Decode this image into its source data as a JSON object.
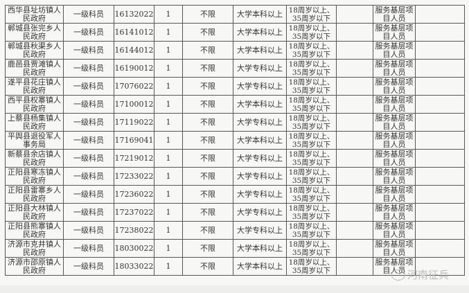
{
  "table": {
    "rows": [
      [
        "西华县址坊镇人民政府",
        "一级科员",
        "16132022",
        "1",
        "不限",
        "大学本科以上",
        "18周岁以上、35周岁以下",
        "",
        "服务基层项目人员",
        ""
      ],
      [
        "郸城县张完乡人民政府",
        "一级科员",
        "16141012",
        "1",
        "不限",
        "大学本科以上",
        "18周岁以上、35周岁以下",
        "",
        "服务基层项目人员",
        ""
      ],
      [
        "郸城县秋渠乡人民政府",
        "一级科员",
        "16144012",
        "1",
        "不限",
        "大学本科以上",
        "18周岁以上、35周岁以下",
        "",
        "服务基层项目人员",
        ""
      ],
      [
        "鹿邑县贾滩镇人民政府",
        "一级科员",
        "16190012",
        "1",
        "不限",
        "大学专科以上",
        "18周岁以上、35周岁以下",
        "",
        "服务基层项目人员",
        ""
      ],
      [
        "遂平县花庄镇人民政府",
        "一级科员",
        "17076022",
        "1",
        "不限",
        "大学专科以上",
        "18周岁以上、35周岁以下",
        "",
        "服务基层项目人员",
        ""
      ],
      [
        "西平县权寨镇人民政府",
        "一级科员",
        "17100012",
        "1",
        "不限",
        "大学本科以上",
        "18周岁以上、35周岁以下",
        "",
        "服务基层项目人员",
        ""
      ],
      [
        "上蔡县杨集镇人民政府",
        "一级科员",
        "17119022",
        "1",
        "不限",
        "大学专科以上",
        "18周岁以上、35周岁以下",
        "",
        "服务基层项目人员",
        ""
      ],
      [
        "平舆县退役军人事务局",
        "一级科员",
        "17169041",
        "1",
        "不限",
        "大学本科以上",
        "18周岁以上、35周岁以下",
        "",
        "服务基层项目人员",
        ""
      ],
      [
        "新蔡县余店镇人民政府",
        "一级科员",
        "17219012",
        "1",
        "不限",
        "大学专科以上",
        "18周岁以上、35周岁以下",
        "",
        "服务基层项目人员",
        ""
      ],
      [
        "正阳县寒冻镇人民政府",
        "一级科员",
        "17233022",
        "1",
        "不限",
        "大学专科以上",
        "18周岁以上、35周岁以下",
        "",
        "服务基层项目人员",
        ""
      ],
      [
        "正阳县雷寨乡人民政府",
        "一级科员",
        "17236022",
        "1",
        "不限",
        "大学专科以上",
        "18周岁以上、35周岁以下",
        "",
        "服务基层项目人员",
        ""
      ],
      [
        "正阳县大林镇人民政府",
        "一级科员",
        "17237022",
        "1",
        "不限",
        "大学专科以上",
        "18周岁以上、35周岁以下",
        "",
        "服务基层项目人员",
        ""
      ],
      [
        "正阳县熊寨镇人民政府",
        "一级科员",
        "17238022",
        "1",
        "不限",
        "大学专科以上",
        "18周岁以上、35周岁以下",
        "",
        "服务基层项目人员",
        ""
      ],
      [
        "济源市克井镇人民政府",
        "一级科员",
        "18030022",
        "1",
        "不限",
        "大学本科以上",
        "18周岁以上、35周岁以下",
        "",
        "服务基层项目人员",
        ""
      ],
      [
        "济源市邵原镇人民政府",
        "一级科员",
        "18033022",
        "1",
        "不限",
        "大学本科以上",
        "18周岁以上、35周岁以下",
        "",
        "服务基层项目人员",
        ""
      ]
    ]
  },
  "watermark": {
    "text": "河南征兵",
    "icon": "wechat-icon"
  }
}
